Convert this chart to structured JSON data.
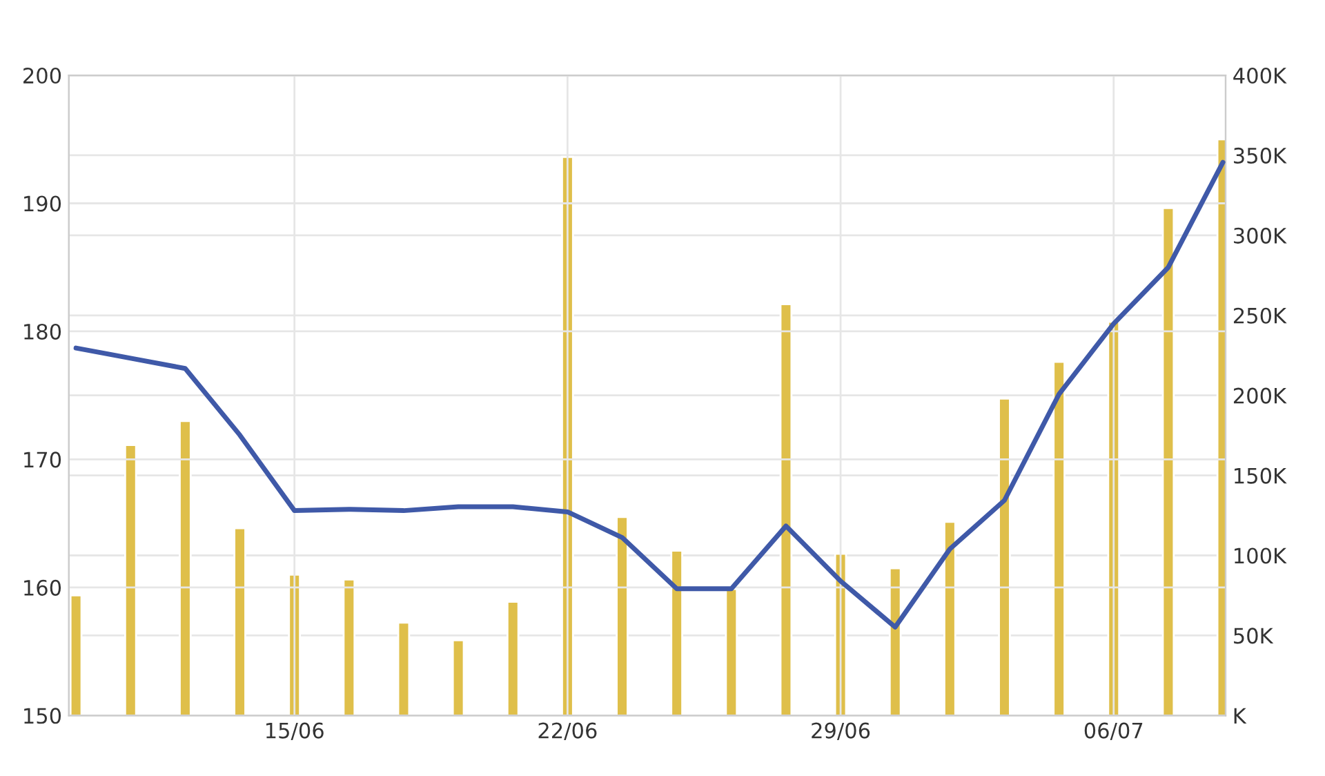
{
  "chart_data": {
    "type": "bar",
    "categories": [
      null,
      null,
      null,
      null,
      "15/06",
      null,
      null,
      null,
      null,
      "22/06",
      null,
      null,
      null,
      null,
      "29/06",
      null,
      null,
      null,
      null,
      "06/07",
      null,
      null
    ],
    "series": [
      {
        "axis": "y2",
        "color": "#dfbf4a",
        "values": [
          75,
          169,
          184,
          117,
          88,
          85,
          58,
          47,
          71,
          349,
          124,
          103,
          79,
          257,
          101,
          92,
          121,
          198,
          221,
          246,
          317,
          360
        ]
      },
      {
        "type": "line",
        "color": "#3f59a8",
        "values": [
          178.7,
          177.9,
          177.1,
          171.9,
          166.0,
          166.1,
          166.0,
          166.3,
          166.3,
          165.9,
          163.9,
          159.9,
          159.9,
          164.8,
          160.5,
          156.9,
          163.0,
          166.8,
          175.1,
          180.6,
          185.0,
          193.2
        ]
      }
    ],
    "ylim": [
      150,
      200
    ],
    "yticks": [
      150,
      160,
      170,
      180,
      190,
      200
    ],
    "y2lim": [
      0,
      400
    ],
    "y2ticks": [
      {
        "value": 0,
        "label": "K"
      },
      {
        "value": 50,
        "label": "50K"
      },
      {
        "value": 100,
        "label": "100K"
      },
      {
        "value": 150,
        "label": "150K"
      },
      {
        "value": 200,
        "label": "200K"
      },
      {
        "value": 250,
        "label": "250K"
      },
      {
        "value": 300,
        "label": "300K"
      },
      {
        "value": 350,
        "label": "350K"
      },
      {
        "value": 400,
        "label": "400K"
      }
    ],
    "grid": true,
    "marker": "none",
    "line_style": "solid"
  }
}
